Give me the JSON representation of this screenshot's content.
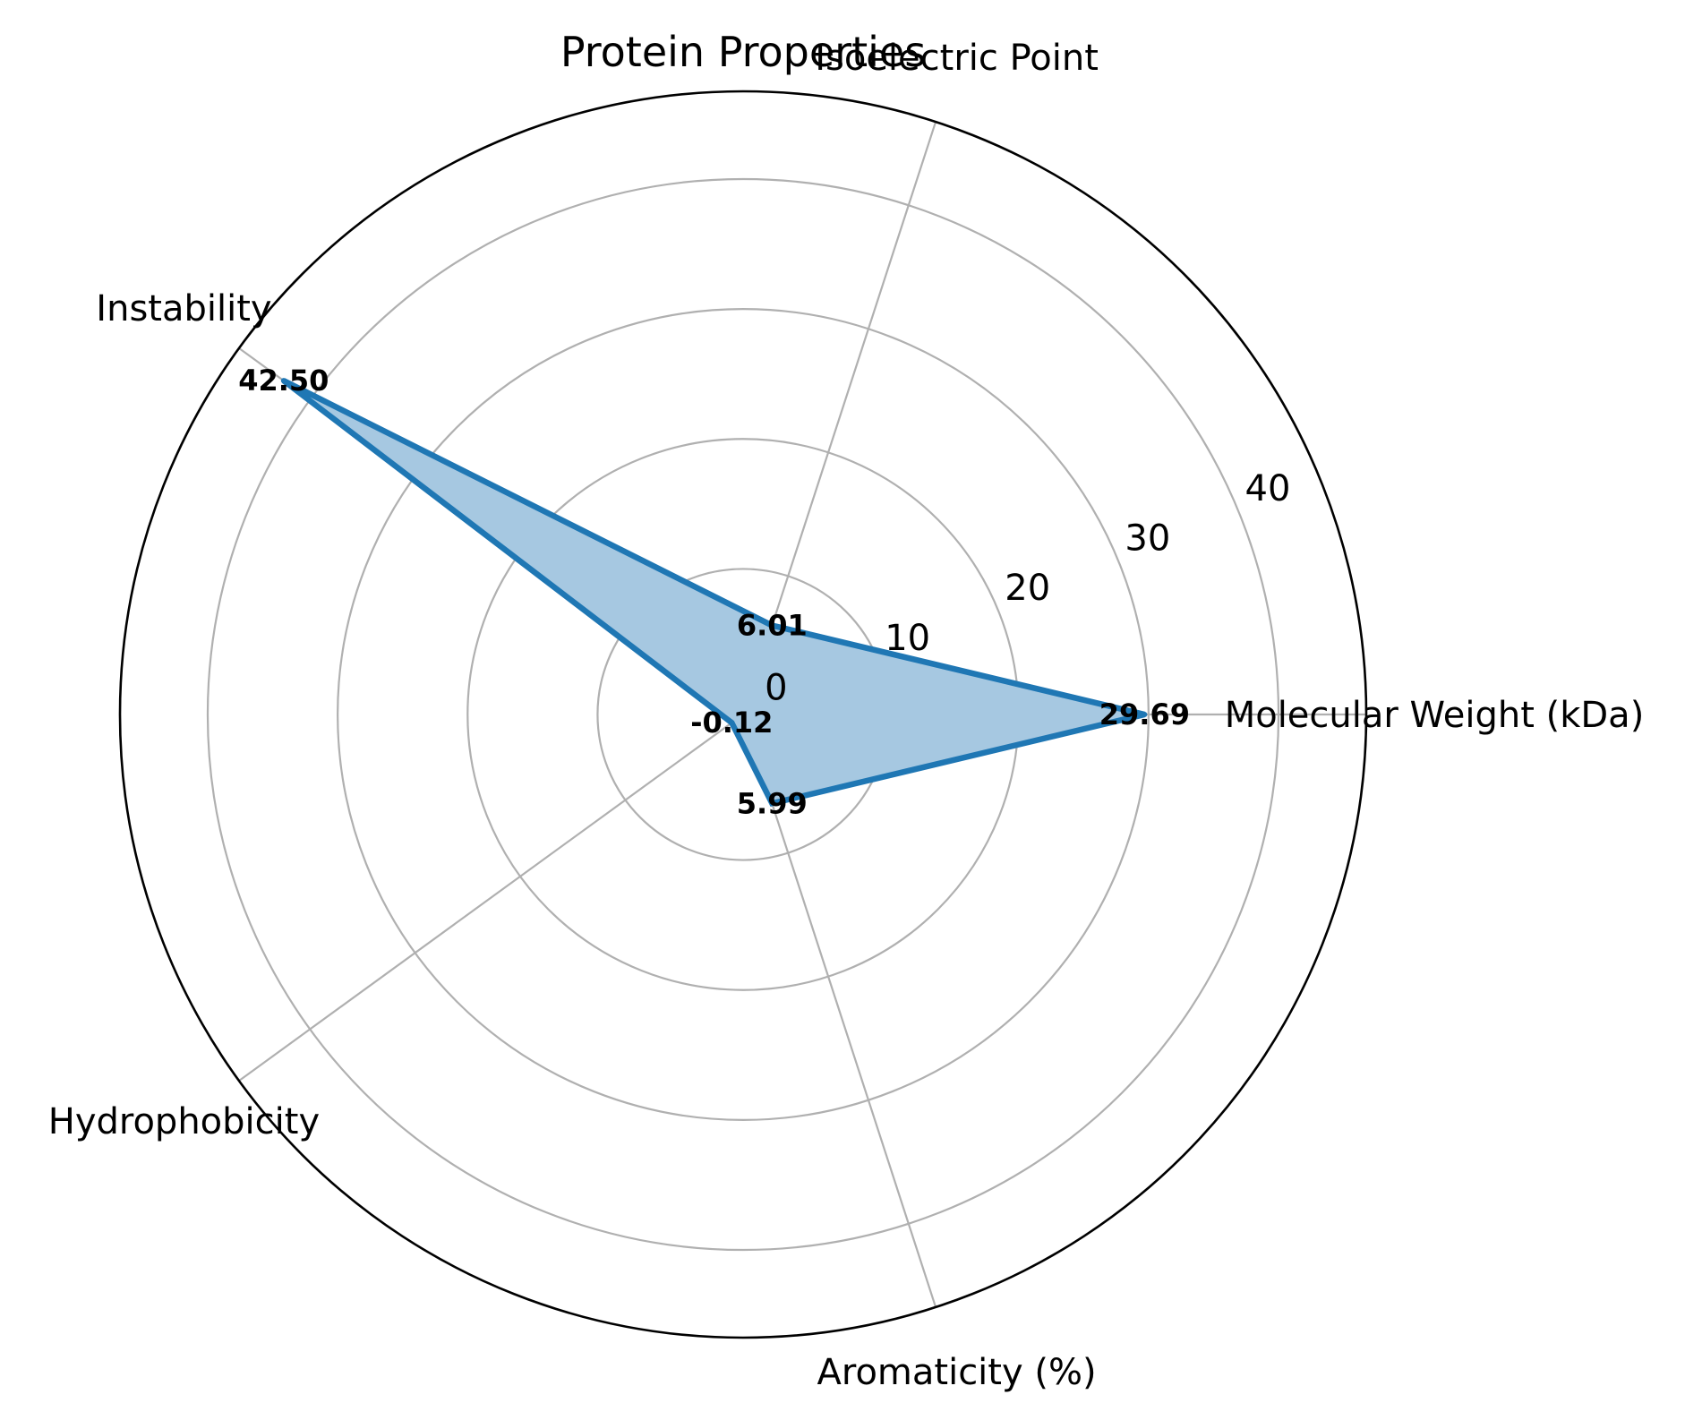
{
  "chart_data": {
    "type": "radar",
    "title": "Protein Properties",
    "axes": [
      "Molecular Weight (kDa)",
      "Isoelectric Point",
      "Instability",
      "Hydrophobicity",
      "Aromaticity (%)"
    ],
    "values": [
      29.69,
      6.01,
      42.5,
      -0.12,
      5.99
    ],
    "value_labels": [
      "29.69",
      "6.01",
      "42.50",
      "-0.12",
      "5.99"
    ],
    "radial_ticks": [
      0,
      10,
      20,
      30,
      40
    ],
    "radial_tick_labels": [
      "0",
      "10",
      "20",
      "30",
      "40"
    ],
    "rlim": [
      -1.2,
      46.75
    ],
    "grid": true,
    "colors": {
      "line": "#1f77b4",
      "fill": "#a6c8e1",
      "grid": "#b0b0b0",
      "spine": "#000000"
    }
  }
}
